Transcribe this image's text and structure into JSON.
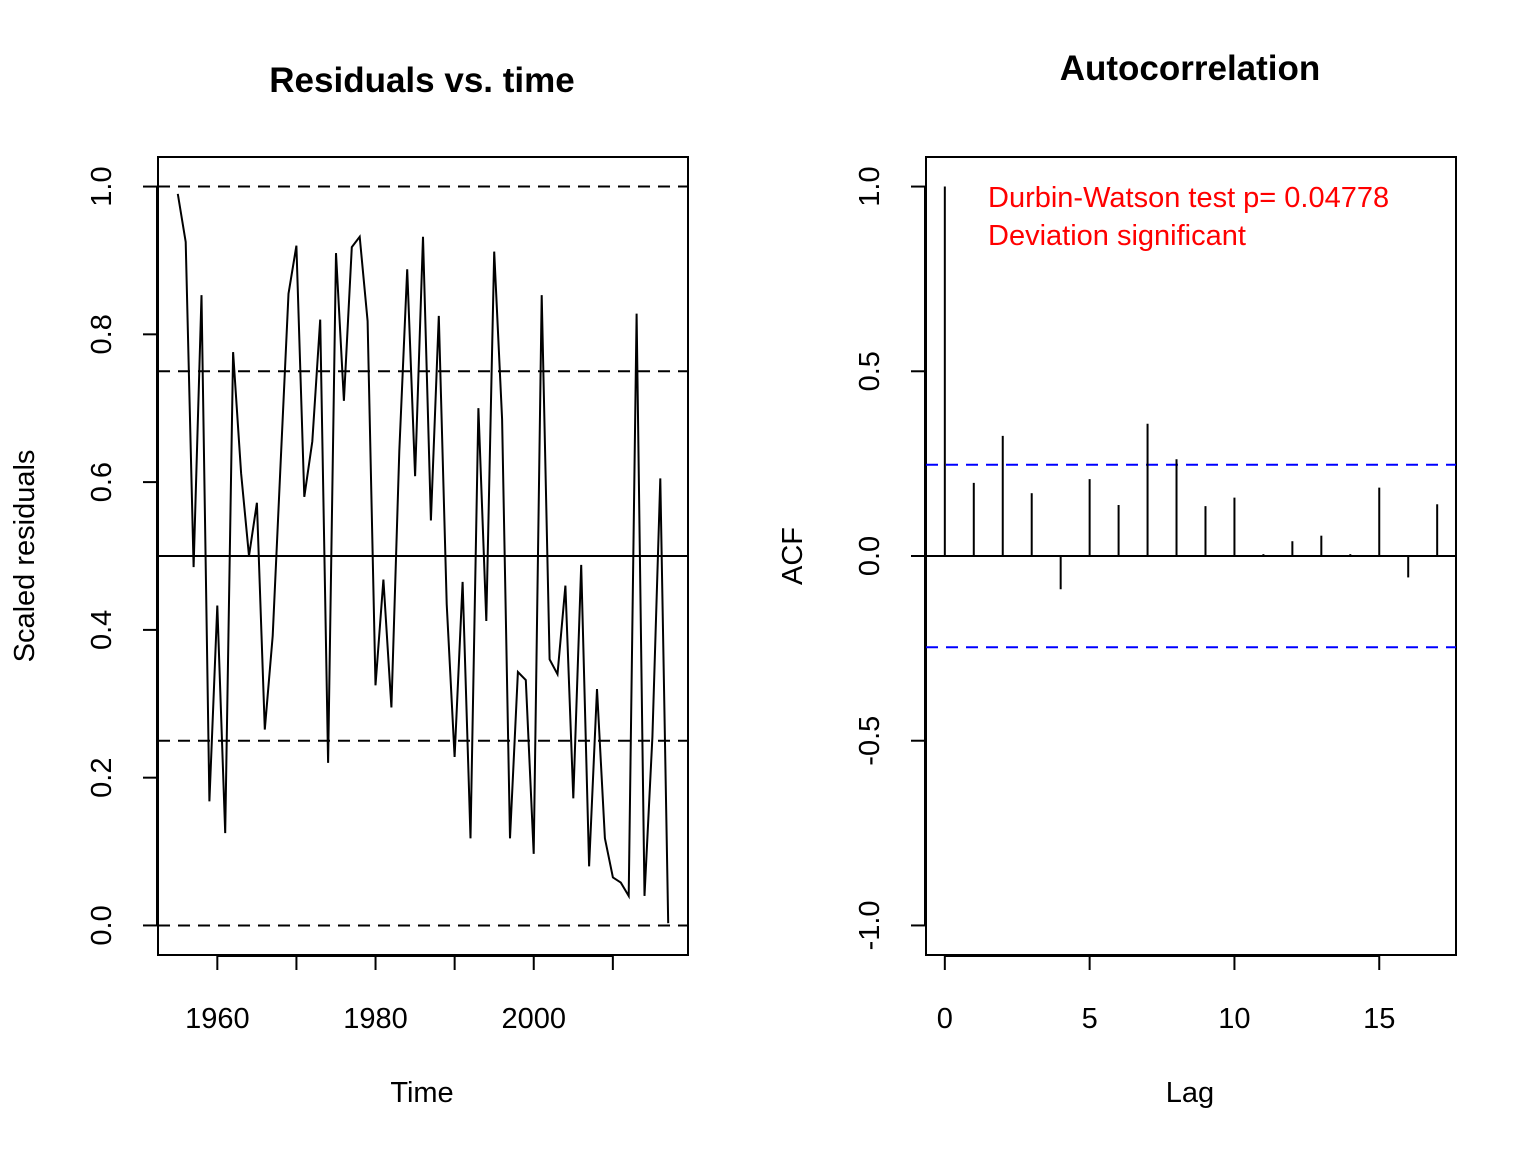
{
  "colors": {
    "foreground": "#000000",
    "annotation": "#ff0000",
    "confidence_band": "#0000ff"
  },
  "chart_data": [
    {
      "type": "line",
      "title": "Residuals vs. time",
      "xlabel": "Time",
      "ylabel": "Scaled residuals",
      "xlim": [
        1952.5,
        2019.5
      ],
      "ylim": [
        -0.04,
        1.04
      ],
      "x_ticks": [
        1960,
        1970,
        1980,
        1990,
        2000,
        2010
      ],
      "x_tick_labels": [
        "1960",
        "",
        "1980",
        "",
        "2000",
        ""
      ],
      "y_ticks": [
        0.0,
        0.2,
        0.4,
        0.6,
        0.8,
        1.0
      ],
      "y_tick_labels": [
        "0.0",
        "0.2",
        "0.4",
        "0.6",
        "0.8",
        "1.0"
      ],
      "reference_lines": [
        {
          "y": 1.0,
          "style": "dashed"
        },
        {
          "y": 0.75,
          "style": "dashed"
        },
        {
          "y": 0.5,
          "style": "solid"
        },
        {
          "y": 0.25,
          "style": "dashed"
        },
        {
          "y": 0.0,
          "style": "dashed"
        }
      ],
      "series": [
        {
          "x": [
            1955,
            1956,
            1957,
            1958,
            1959,
            1960,
            1961,
            1962,
            1963,
            1964,
            1965,
            1966,
            1967,
            1968,
            1969,
            1970,
            1971,
            1972,
            1973,
            1974,
            1975,
            1976,
            1977,
            1978,
            1979,
            1980,
            1981,
            1982,
            1983,
            1984,
            1985,
            1986,
            1987,
            1988,
            1989,
            1990,
            1991,
            1992,
            1993,
            1994,
            1995,
            1996,
            1997,
            1998,
            1999,
            2000,
            2001,
            2002,
            2003,
            2004,
            2005,
            2006,
            2007,
            2008,
            2009,
            2010,
            2011,
            2012,
            2013,
            2014,
            2015,
            2016,
            2017
          ],
          "values": [
            0.99,
            0.925,
            0.485,
            0.853,
            0.168,
            0.433,
            0.125,
            0.776,
            0.612,
            0.5,
            0.572,
            0.265,
            0.392,
            0.625,
            0.855,
            0.92,
            0.58,
            0.655,
            0.82,
            0.22,
            0.91,
            0.71,
            0.918,
            0.932,
            0.818,
            0.325,
            0.468,
            0.295,
            0.642,
            0.888,
            0.608,
            0.932,
            0.548,
            0.825,
            0.435,
            0.228,
            0.465,
            0.118,
            0.7,
            0.412,
            0.912,
            0.685,
            0.118,
            0.343,
            0.332,
            0.097,
            0.853,
            0.36,
            0.34,
            0.46,
            0.172,
            0.488,
            0.08,
            0.32,
            0.118,
            0.065,
            0.058,
            0.04,
            0.828,
            0.04,
            0.255,
            0.605,
            0.003
          ]
        }
      ]
    },
    {
      "type": "bar",
      "title": "Autocorrelation",
      "xlabel": "Lag",
      "ylabel": "ACF",
      "xlim": [
        -0.65,
        17.65
      ],
      "ylim": [
        -1.08,
        1.08
      ],
      "x_ticks": [
        0,
        5,
        10,
        15
      ],
      "x_tick_labels": [
        "0",
        "5",
        "10",
        "15"
      ],
      "y_ticks": [
        -1.0,
        -0.5,
        0.0,
        0.5,
        1.0
      ],
      "y_tick_labels": [
        "-1.0",
        "-0.5",
        "0.0",
        "0.5",
        "1.0"
      ],
      "zero_line": 0,
      "confidence_band": [
        -0.247,
        0.247
      ],
      "lags": [
        0,
        1,
        2,
        3,
        4,
        5,
        6,
        7,
        8,
        9,
        10,
        11,
        12,
        13,
        14,
        15,
        16,
        17
      ],
      "values": [
        1.0,
        0.198,
        0.325,
        0.17,
        -0.09,
        0.208,
        0.138,
        0.358,
        0.262,
        0.135,
        0.158,
        0.005,
        0.04,
        0.055,
        0.005,
        0.185,
        -0.058,
        0.14
      ],
      "annotations": [
        "Durbin-Watson test  p= 0.04778",
        "Deviation  significant"
      ]
    }
  ]
}
